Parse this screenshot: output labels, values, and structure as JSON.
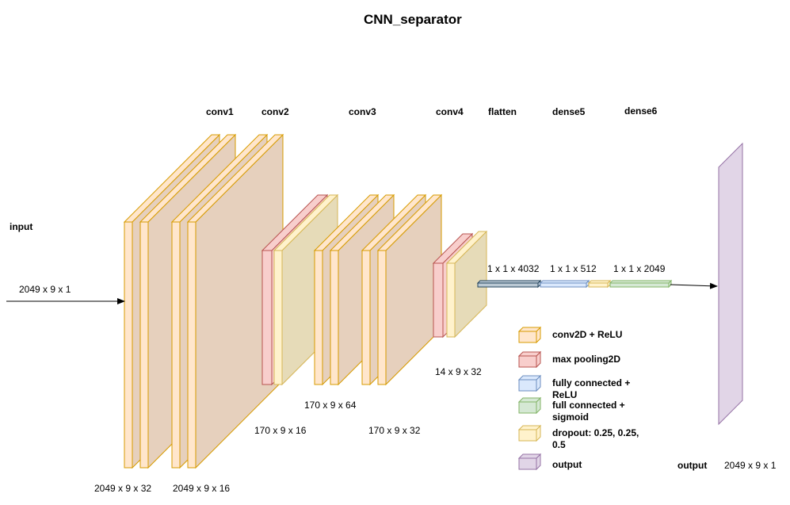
{
  "title": "CNN_separator",
  "colors": {
    "conv": "#ffe6cc",
    "conv_stroke": "#d79b00",
    "pool": "#f8cecc",
    "pool_stroke": "#b85450",
    "fc": "#dae8fc",
    "fc_stroke": "#6c8ebf",
    "sigmoid": "#d5e8d4",
    "sigmoid_stroke": "#82b366",
    "dropout": "#fff2cc",
    "dropout_stroke": "#d6b656",
    "output": "#e1d5e7",
    "output_stroke": "#9673a6",
    "flatten": "#bac8d3",
    "flatten_stroke": "#23445d",
    "block_depth": "#e6d0bd",
    "dropout_depth": "#e6dbb8"
  },
  "layers": {
    "conv1": "conv1",
    "conv2": "conv2",
    "conv3": "conv3",
    "conv4": "conv4",
    "flatten": "flatten",
    "dense5": "dense5",
    "dense6": "dense6",
    "input": "input",
    "output": "output"
  },
  "dims": {
    "input": "2049 x 9 x 1",
    "conv1a": "2049 x 9 x 32",
    "conv1b": "2049 x 9 x 16",
    "conv2": "170 x 9 x 16",
    "conv3a": "170 x 9 x 64",
    "conv3b": "170 x 9 x 32",
    "conv4": "14 x 9 x 32",
    "flatten": "1 x 1 x 4032",
    "dense5": "1 x 1 x 512",
    "dense6": "1 x 1 x 2049",
    "output": "2049 x 9 x 1"
  },
  "legend": [
    {
      "key": "conv",
      "label": "conv2D + ReLU"
    },
    {
      "key": "pool",
      "label": "max pooling2D"
    },
    {
      "key": "fc",
      "label": "fully connected + ReLU"
    },
    {
      "key": "sigmoid",
      "label": "full connected + sigmoid"
    },
    {
      "key": "dropout",
      "label": "dropout: 0.25, 0.25, 0.5"
    },
    {
      "key": "output",
      "label": "output"
    }
  ]
}
